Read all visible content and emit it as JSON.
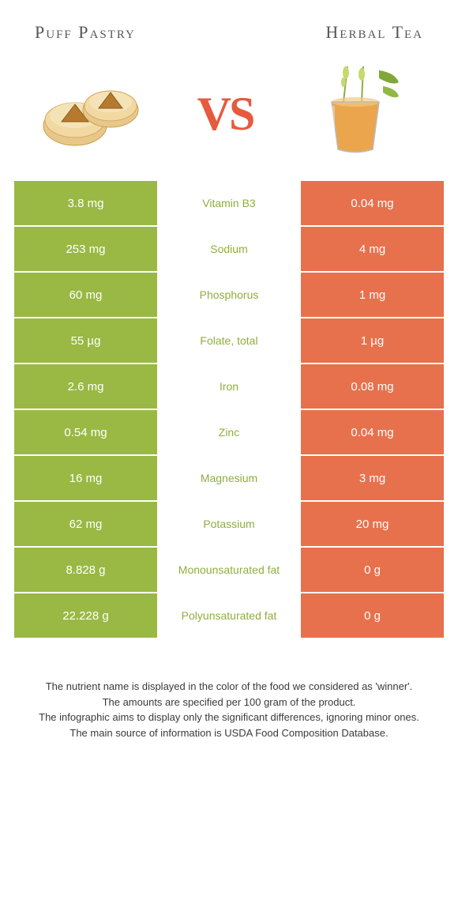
{
  "header": {
    "left_title": "Puff Pastry",
    "right_title": "Herbal Tea"
  },
  "vs_label": "VS",
  "colors": {
    "green": "#99b944",
    "orange": "#e7714d",
    "nutrient_green": "#8fae3c",
    "nutrient_orange": "#d85c37",
    "vs_color": "#e65a3d"
  },
  "rows": [
    {
      "nutrient": "Vitamin B3",
      "left": "3.8 mg",
      "right": "0.04 mg",
      "winner": "left"
    },
    {
      "nutrient": "Sodium",
      "left": "253 mg",
      "right": "4 mg",
      "winner": "left"
    },
    {
      "nutrient": "Phosphorus",
      "left": "60 mg",
      "right": "1 mg",
      "winner": "left"
    },
    {
      "nutrient": "Folate, total",
      "left": "55 µg",
      "right": "1 µg",
      "winner": "left"
    },
    {
      "nutrient": "Iron",
      "left": "2.6 mg",
      "right": "0.08 mg",
      "winner": "left"
    },
    {
      "nutrient": "Zinc",
      "left": "0.54 mg",
      "right": "0.04 mg",
      "winner": "left"
    },
    {
      "nutrient": "Magnesium",
      "left": "16 mg",
      "right": "3 mg",
      "winner": "left"
    },
    {
      "nutrient": "Potassium",
      "left": "62 mg",
      "right": "20 mg",
      "winner": "left"
    },
    {
      "nutrient": "Monounsaturated fat",
      "left": "8.828 g",
      "right": "0 g",
      "winner": "left"
    },
    {
      "nutrient": "Polyunsaturated fat",
      "left": "22.228 g",
      "right": "0 g",
      "winner": "left"
    }
  ],
  "footer": {
    "line1": "The nutrient name is displayed in the color of the food we considered as 'winner'.",
    "line2": "The amounts are specified per 100 gram of the product.",
    "line3": "The infographic aims to display only the significant differences, ignoring minor ones.",
    "line4": "The main source of information is USDA Food Composition Database."
  }
}
